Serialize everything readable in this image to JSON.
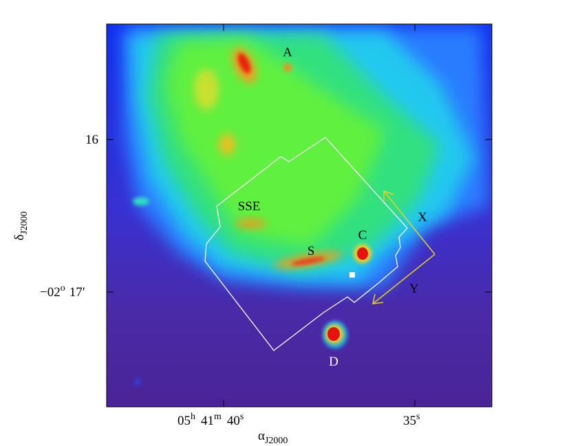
{
  "annotations": {
    "A": "A",
    "SSE": "SSE",
    "S": "S",
    "C": "C",
    "D": "D",
    "X": "X",
    "Y": "Y"
  },
  "x_axis": {
    "title": {
      "main": "α",
      "sub": "J2000"
    },
    "ticks": [
      {
        "h": "05",
        "h_unit": "h",
        "m": "41",
        "m_unit": "m",
        "s": "40",
        "s_unit": "s"
      },
      {
        "s": "35",
        "s_unit": "s"
      }
    ]
  },
  "y_axis": {
    "title": {
      "main": "δ",
      "sub": "J2000"
    },
    "ticks": [
      {
        "text": "16"
      },
      {
        "deg": "−02",
        "deg_unit": "o",
        "min": "17′"
      }
    ]
  }
}
